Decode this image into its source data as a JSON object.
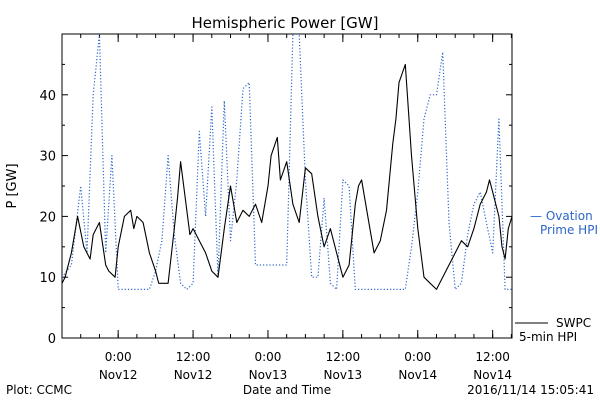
{
  "chart_data": {
    "type": "line",
    "title": "Hemispheric Power [GW]",
    "xlabel": "Date and Time",
    "ylabel": "P [GW]",
    "ylim": [
      0,
      50
    ],
    "xlim": [
      "2016-11-11T15:00",
      "2016-11-14T15:06"
    ],
    "y_ticks": [
      0,
      10,
      20,
      30,
      40
    ],
    "x_ticks": [
      {
        "time": "2016-11-12T00:00",
        "label": "0:00",
        "sublabel": "Nov12"
      },
      {
        "time": "2016-11-12T12:00",
        "label": "12:00",
        "sublabel": "Nov12"
      },
      {
        "time": "2016-11-13T00:00",
        "label": "0:00",
        "sublabel": "Nov13"
      },
      {
        "time": "2016-11-13T12:00",
        "label": "12:00",
        "sublabel": "Nov13"
      },
      {
        "time": "2016-11-14T00:00",
        "label": "0:00",
        "sublabel": "Nov14"
      },
      {
        "time": "2016-11-14T12:00",
        "label": "12:00",
        "sublabel": "Nov14"
      }
    ],
    "grid": false,
    "legend_position": "right",
    "series": [
      {
        "name": "SWPC 5-min HPI",
        "legend_lines": [
          "SWPC",
          "5-min HPI"
        ],
        "color": "#000000",
        "style": "solid",
        "x": [
          "2016-11-11T15:00",
          "2016-11-11T15:30",
          "2016-11-11T16:30",
          "2016-11-11T17:30",
          "2016-11-11T18:30",
          "2016-11-11T19:30",
          "2016-11-11T20:00",
          "2016-11-11T21:00",
          "2016-11-11T22:00",
          "2016-11-11T22:30",
          "2016-11-11T23:30",
          "2016-11-12T00:00",
          "2016-11-12T01:00",
          "2016-11-12T02:00",
          "2016-11-12T02:30",
          "2016-11-12T03:00",
          "2016-11-12T04:00",
          "2016-11-12T05:00",
          "2016-11-12T06:00",
          "2016-11-12T06:30",
          "2016-11-12T07:00",
          "2016-11-12T08:00",
          "2016-11-12T09:00",
          "2016-11-12T09:30",
          "2016-11-12T10:00",
          "2016-11-12T11:00",
          "2016-11-12T11:30",
          "2016-11-12T12:00",
          "2016-11-12T13:00",
          "2016-11-12T14:00",
          "2016-11-12T15:00",
          "2016-11-12T16:00",
          "2016-11-12T17:00",
          "2016-11-12T18:00",
          "2016-11-12T19:00",
          "2016-11-12T20:00",
          "2016-11-12T21:00",
          "2016-11-12T22:00",
          "2016-11-12T23:00",
          "2016-11-13T00:00",
          "2016-11-13T00:30",
          "2016-11-13T01:30",
          "2016-11-13T02:00",
          "2016-11-13T03:00",
          "2016-11-13T04:00",
          "2016-11-13T05:00",
          "2016-11-13T06:00",
          "2016-11-13T07:00",
          "2016-11-13T08:00",
          "2016-11-13T09:00",
          "2016-11-13T10:00",
          "2016-11-13T11:00",
          "2016-11-13T12:00",
          "2016-11-13T13:00",
          "2016-11-13T14:00",
          "2016-11-13T14:30",
          "2016-11-13T15:00",
          "2016-11-13T16:00",
          "2016-11-13T17:00",
          "2016-11-13T18:00",
          "2016-11-13T19:00",
          "2016-11-13T20:00",
          "2016-11-13T20:30",
          "2016-11-13T21:00",
          "2016-11-13T22:00",
          "2016-11-13T23:00",
          "2016-11-14T00:00",
          "2016-11-14T01:00",
          "2016-11-14T02:00",
          "2016-11-14T03:00",
          "2016-11-14T04:00",
          "2016-11-14T05:00",
          "2016-11-14T06:00",
          "2016-11-14T07:00",
          "2016-11-14T08:00",
          "2016-11-14T09:00",
          "2016-11-14T10:00",
          "2016-11-14T11:00",
          "2016-11-14T11:30",
          "2016-11-14T12:00",
          "2016-11-14T13:00",
          "2016-11-14T13:30",
          "2016-11-14T14:00",
          "2016-11-14T14:30",
          "2016-11-14T15:06"
        ],
        "y": [
          9,
          10,
          14,
          20,
          15,
          13,
          17,
          19,
          12,
          11,
          10,
          15,
          20,
          21,
          18,
          20,
          19,
          14,
          11,
          9,
          9,
          9,
          18,
          23,
          29,
          21,
          17,
          18,
          16,
          14,
          11,
          10,
          18,
          25,
          19,
          21,
          20,
          22,
          19,
          25,
          30,
          33,
          26,
          29,
          22,
          19,
          28,
          27,
          20,
          15,
          18,
          14,
          10,
          12,
          22,
          25,
          26,
          20,
          14,
          16,
          21,
          32,
          36,
          42,
          45,
          30,
          18,
          10,
          9,
          8,
          10,
          12,
          14,
          16,
          15,
          18,
          22,
          24,
          26,
          24,
          20,
          15,
          13,
          18,
          20
        ]
      },
      {
        "name": "Ovation Prime HPI",
        "legend_lines": [
          "— Ovation",
          "Prime HPI"
        ],
        "color": "#2b67c9",
        "style": "dotted",
        "x": [
          "2016-11-11T15:00",
          "2016-11-11T16:30",
          "2016-11-11T18:00",
          "2016-11-11T19:00",
          "2016-11-11T20:00",
          "2016-11-11T21:00",
          "2016-11-11T22:00",
          "2016-11-11T23:00",
          "2016-11-12T00:00",
          "2016-11-12T01:00",
          "2016-11-12T02:00",
          "2016-11-12T03:00",
          "2016-11-12T04:00",
          "2016-11-12T05:00",
          "2016-11-12T06:00",
          "2016-11-12T07:00",
          "2016-11-12T08:00",
          "2016-11-12T09:00",
          "2016-11-12T10:00",
          "2016-11-12T11:00",
          "2016-11-12T12:00",
          "2016-11-12T13:00",
          "2016-11-12T14:00",
          "2016-11-12T15:00",
          "2016-11-12T16:00",
          "2016-11-12T17:00",
          "2016-11-12T18:00",
          "2016-11-12T19:00",
          "2016-11-12T20:00",
          "2016-11-12T21:00",
          "2016-11-12T22:00",
          "2016-11-12T23:00",
          "2016-11-13T00:00",
          "2016-11-13T01:00",
          "2016-11-13T02:00",
          "2016-11-13T03:00",
          "2016-11-13T04:00",
          "2016-11-13T05:00",
          "2016-11-13T06:00",
          "2016-11-13T07:00",
          "2016-11-13T08:00",
          "2016-11-13T09:00",
          "2016-11-13T10:00",
          "2016-11-13T11:00",
          "2016-11-13T12:00",
          "2016-11-13T13:00",
          "2016-11-13T14:00",
          "2016-11-13T15:00",
          "2016-11-13T16:00",
          "2016-11-13T17:00",
          "2016-11-13T18:00",
          "2016-11-13T19:00",
          "2016-11-13T20:00",
          "2016-11-13T21:00",
          "2016-11-13T22:00",
          "2016-11-13T23:00",
          "2016-11-14T00:00",
          "2016-11-14T01:00",
          "2016-11-14T02:00",
          "2016-11-14T03:00",
          "2016-11-14T04:00",
          "2016-11-14T05:00",
          "2016-11-14T06:00",
          "2016-11-14T07:00",
          "2016-11-14T08:00",
          "2016-11-14T09:00",
          "2016-11-14T10:00",
          "2016-11-14T11:00",
          "2016-11-14T12:00",
          "2016-11-14T13:00",
          "2016-11-14T14:00",
          "2016-11-14T15:00"
        ],
        "y": [
          10,
          12,
          25,
          14,
          40,
          50,
          14,
          30,
          8,
          8,
          8,
          8,
          8,
          8,
          11,
          16,
          30,
          17,
          9,
          8,
          9,
          34,
          20,
          38,
          10,
          39,
          16,
          26,
          41,
          42,
          12,
          12,
          12,
          12,
          12,
          12,
          50,
          50,
          26,
          10,
          10,
          23,
          9,
          8,
          26,
          25,
          8,
          8,
          8,
          8,
          8,
          8,
          8,
          8,
          8,
          15,
          24,
          36,
          40,
          40,
          47,
          19,
          8,
          9,
          17,
          22,
          24,
          19,
          14,
          36,
          8,
          8
        ]
      }
    ]
  },
  "footer": {
    "plot_credit": "Plot: CCMC",
    "timestamp": "2016/11/14 15:05:41"
  }
}
